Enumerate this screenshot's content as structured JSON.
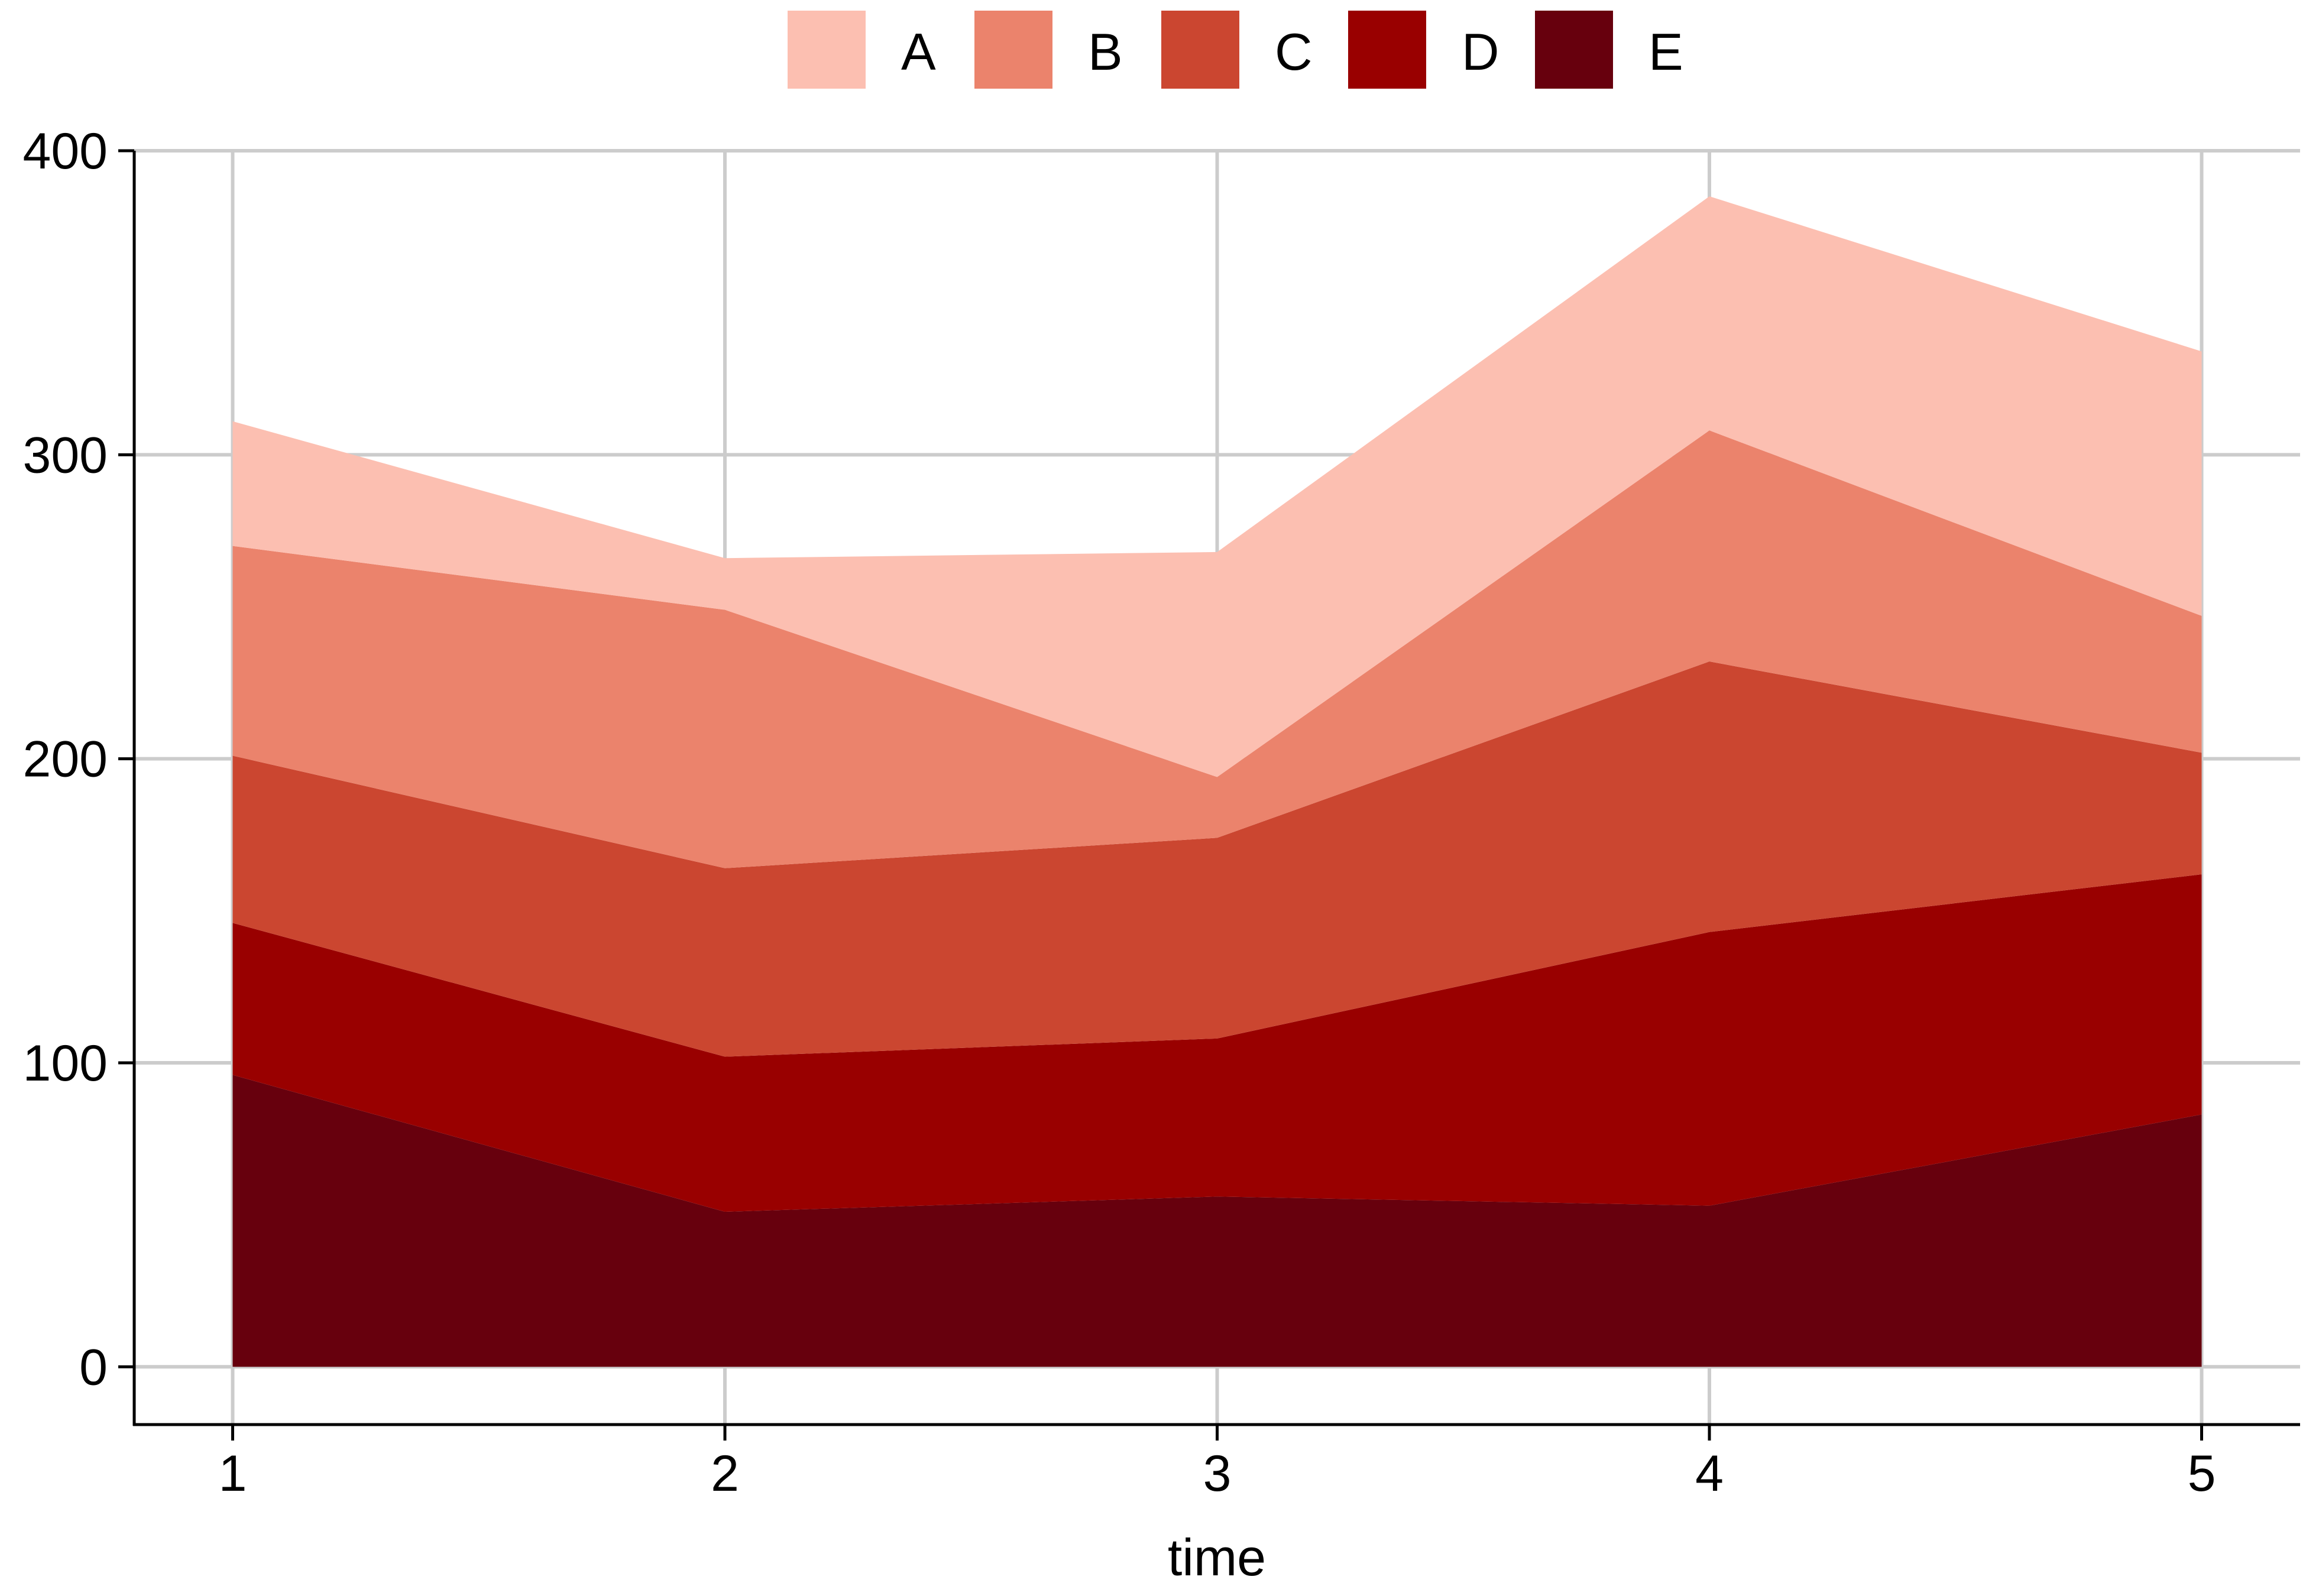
{
  "chart_data": {
    "type": "area",
    "stacked": true,
    "xlabel": "time",
    "ylabel": "",
    "x": [
      1,
      2,
      3,
      4,
      5
    ],
    "xlim": [
      0.8,
      5.2
    ],
    "ylim": [
      -19,
      400
    ],
    "yticks": [
      0,
      100,
      200,
      300,
      400
    ],
    "xticks": [
      1,
      2,
      3,
      4,
      5
    ],
    "grid": true,
    "legend": {
      "position": "top",
      "orientation": "horizontal"
    },
    "series": [
      {
        "name": "E",
        "color": "#67000D",
        "values": [
          96,
          51,
          56,
          53,
          83
        ]
      },
      {
        "name": "D",
        "color": "#990000",
        "values": [
          50,
          51,
          52,
          90,
          79
        ]
      },
      {
        "name": "C",
        "color": "#CB4630",
        "values": [
          55,
          62,
          66,
          89,
          40
        ]
      },
      {
        "name": "B",
        "color": "#EB836C",
        "values": [
          69,
          85,
          20,
          76,
          45
        ]
      },
      {
        "name": "A",
        "color": "#FCBFB1",
        "values": [
          41,
          17,
          74,
          77,
          87
        ]
      }
    ],
    "legend_order": [
      "A",
      "B",
      "C",
      "D",
      "E"
    ]
  }
}
